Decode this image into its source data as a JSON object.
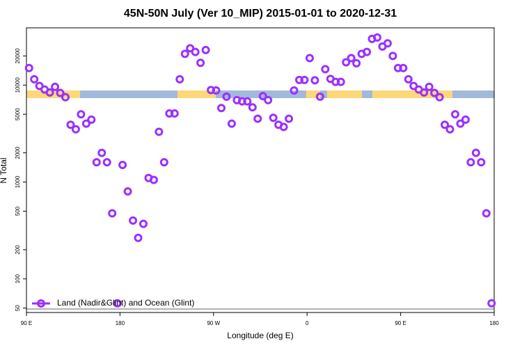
{
  "chart_data": {
    "type": "scatter",
    "title": "45N-50N July (Ver 10_MIP)   2015-01-01 to 2020-12-31",
    "xlabel": "Longitude (deg E)",
    "ylabel": "N Total",
    "ylog": true,
    "grid": false,
    "legend": "bottom-left",
    "xlim": [
      90,
      540
    ],
    "xticks": [
      {
        "value": 90,
        "label": "90 E"
      },
      180,
      {
        "value": 270,
        "label": "90 W"
      },
      {
        "value": 360,
        "label": "0"
      },
      {
        "value": 450,
        "label": "90 E"
      },
      {
        "value": 540,
        "label": "180"
      }
    ],
    "ylim": [
      45,
      39000
    ],
    "yticks": [
      50,
      100,
      200,
      500,
      1000,
      2000,
      5000,
      10000,
      20000
    ],
    "x": [
      92.5,
      97.5,
      102.5,
      107.5,
      112.5,
      117.5,
      122.5,
      127.5,
      132.5,
      137.5,
      142.5,
      147.5,
      152.5,
      157.5,
      162.5,
      167.5,
      172.5,
      177.5,
      182.5,
      187.5,
      192.5,
      197.5,
      202.5,
      207.5,
      212.5,
      217.5,
      222.5,
      227.5,
      232.5,
      237.5,
      242.5,
      247.5,
      252.5,
      257.5,
      262.5,
      267.5,
      272.5,
      277.5,
      282.5,
      287.5,
      292.5,
      297.5,
      302.5,
      307.5,
      312.5,
      317.5,
      322.5,
      327.5,
      332.5,
      337.5,
      342.5,
      347.5,
      352.5,
      357.5,
      362.5,
      367.5,
      372.5,
      377.5,
      382.5,
      387.5,
      392.5,
      397.5,
      402.5,
      407.5,
      412.5,
      417.5,
      422.5,
      427.5,
      432.5,
      437.5,
      442.5,
      447.5,
      452.5,
      457.5,
      462.5,
      467.5,
      472.5,
      477.5,
      482.5,
      487.5,
      492.5,
      497.5,
      502.5,
      507.5,
      512.5,
      517.5,
      522.5,
      527.5,
      532.5,
      537.5
    ],
    "series": [
      {
        "name": "Land (Nadir&Glint) and Ocean (Glint)",
        "color": "#9b30ff",
        "values": [
          15000,
          11500,
          9800,
          9000,
          8400,
          9600,
          8300,
          7500,
          3900,
          3500,
          5000,
          4000,
          4400,
          1600,
          2000,
          1600,
          475,
          56,
          1500,
          800,
          400,
          265,
          370,
          1100,
          1050,
          3300,
          1600,
          5100,
          5100,
          11500,
          21000,
          24000,
          22000,
          17000,
          23000,
          8900,
          8800,
          5800,
          7600,
          4000,
          7000,
          6800,
          6800,
          5900,
          4500,
          7700,
          7000,
          4600,
          3900,
          3700,
          4500,
          8800,
          11300,
          11300,
          19000,
          11200,
          7600,
          14600,
          11600,
          10800,
          10800,
          17200,
          19000,
          16800,
          21000,
          22000,
          30000,
          31000,
          25000,
          27000,
          20000,
          15000,
          15000,
          11500,
          9800,
          9000,
          8400,
          9600,
          8300,
          7500,
          3900,
          3500,
          5000,
          4000,
          4400,
          1600,
          2000,
          1600,
          475,
          56
        ]
      }
    ]
  }
}
